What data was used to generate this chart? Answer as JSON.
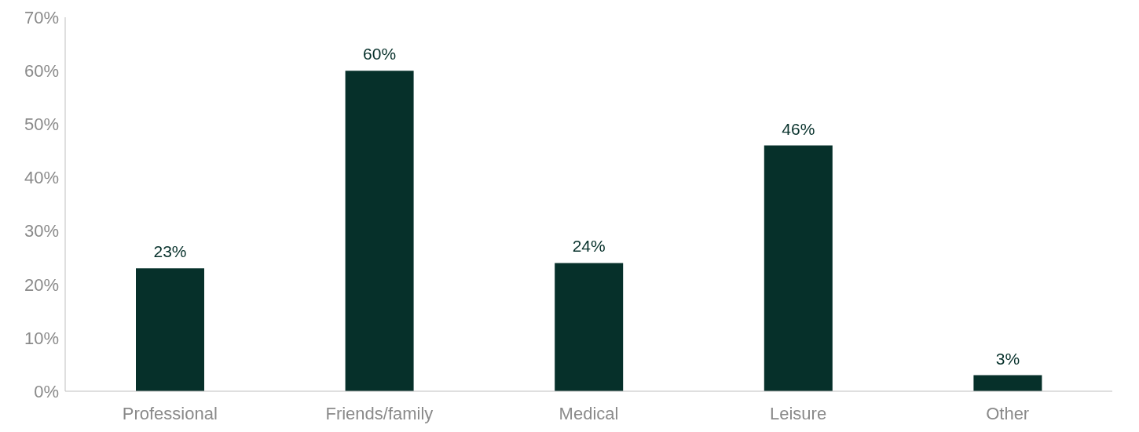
{
  "chart_data": {
    "type": "bar",
    "categories": [
      "Professional",
      "Friends/family",
      "Medical",
      "Leisure",
      "Other"
    ],
    "values": [
      23,
      60,
      24,
      46,
      3
    ],
    "value_labels": [
      "23%",
      "60%",
      "24%",
      "46%",
      "3%"
    ],
    "color": "#06302a",
    "ylim": [
      0,
      70
    ],
    "yticks": [
      {
        "value": 0,
        "label": "0%"
      },
      {
        "value": 10,
        "label": "10%"
      },
      {
        "value": 20,
        "label": "20%"
      },
      {
        "value": 30,
        "label": "30%"
      },
      {
        "value": 40,
        "label": "40%"
      },
      {
        "value": 50,
        "label": "50%"
      },
      {
        "value": 60,
        "label": "60%"
      },
      {
        "value": 70,
        "label": "70%"
      }
    ],
    "grid": false,
    "legend": false
  }
}
